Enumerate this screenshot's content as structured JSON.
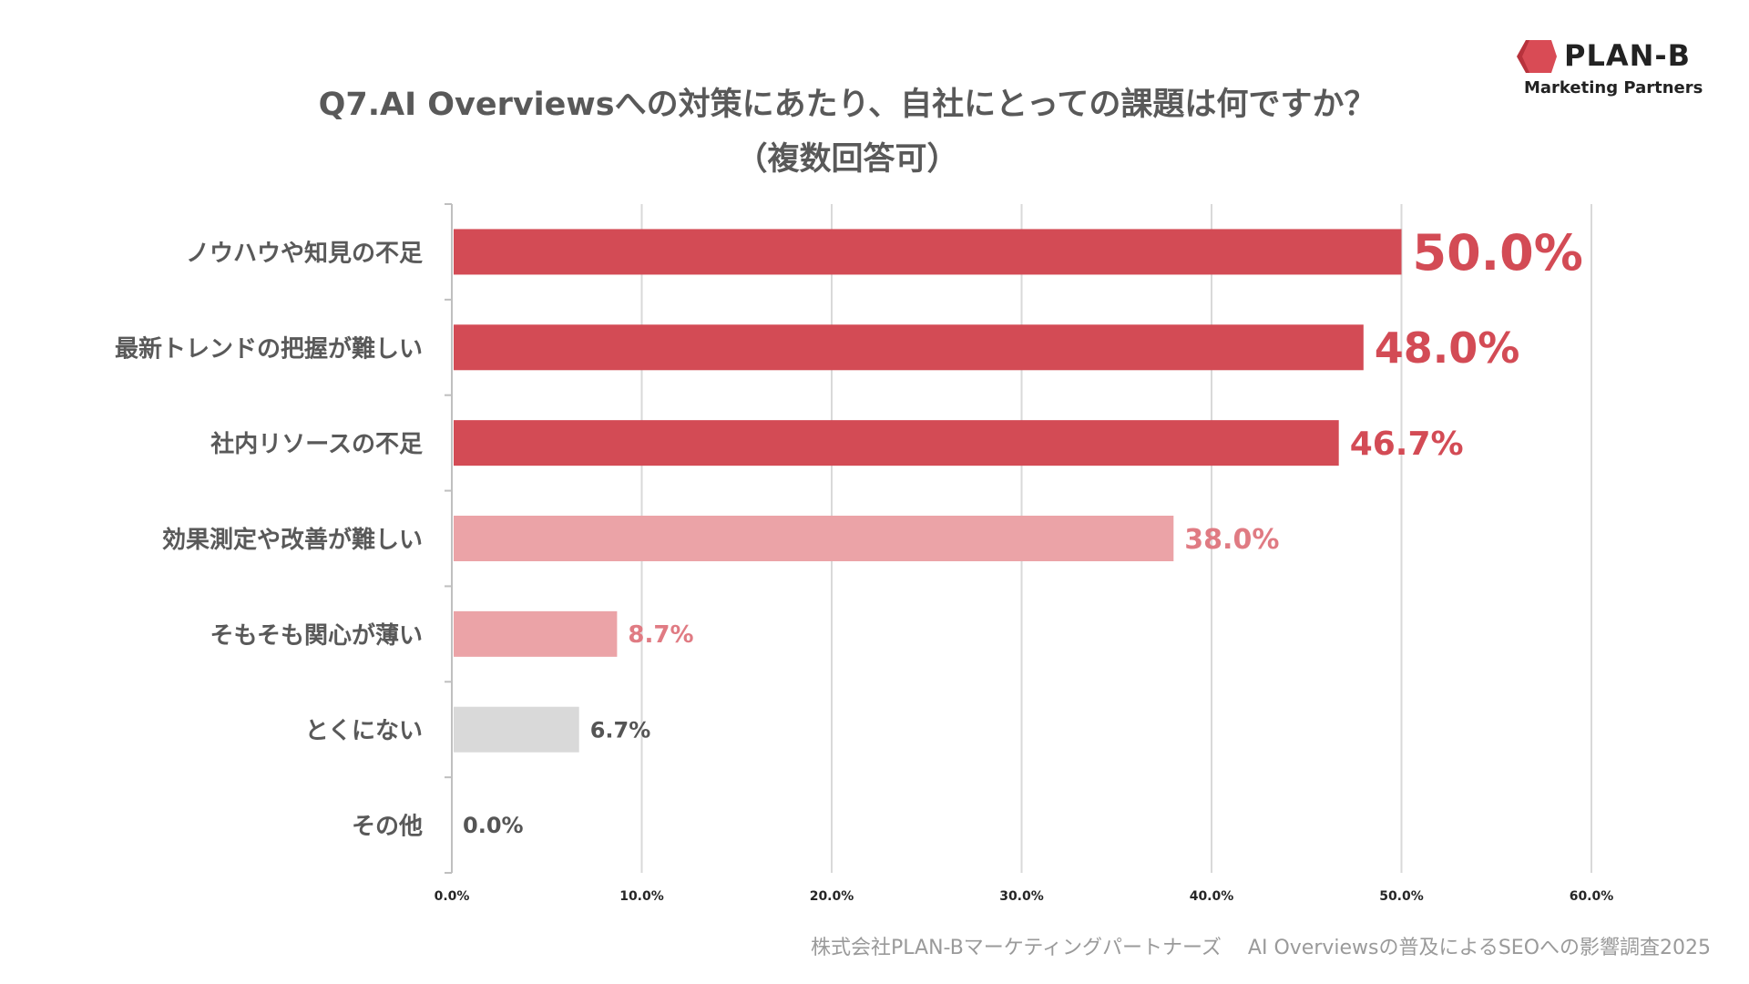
{
  "header": {
    "title_line1": "Q7.AI Overviewsへの対策にあたり、自社にとっての課題は何ですか？",
    "title_line2": "（複数回答可）"
  },
  "logo": {
    "name": "PLAN-B",
    "tagline": "Marketing Partners",
    "brand_color": "#d94b55"
  },
  "footer": {
    "source": "株式会社PLAN-Bマーケティングパートナーズ　 AI Overviewsの普及によるSEOへの影響調査2025"
  },
  "chart_data": {
    "type": "bar",
    "orientation": "horizontal",
    "title": "Q7.AI Overviewsへの対策にあたり、自社にとっての課題は何ですか？（複数回答可）",
    "xlabel": "",
    "ylabel": "",
    "xlim": [
      0,
      60
    ],
    "grid": true,
    "categories": [
      "ノウハウや知見の不足",
      "最新トレンドの把握が難しい",
      "社内リソースの不足",
      "効果測定や改善が難しい",
      "そもそも関心が薄い",
      "とくにない",
      "その他"
    ],
    "values": [
      50.0,
      48.0,
      46.7,
      38.0,
      8.7,
      6.7,
      0.0
    ],
    "value_labels": [
      "50.0%",
      "48.0%",
      "46.7%",
      "38.0%",
      "8.7%",
      "6.7%",
      "0.0%"
    ],
    "tick_values": [
      0,
      10,
      20,
      30,
      40,
      50,
      60
    ],
    "tick_labels": [
      "0.0%",
      "10.0%",
      "20.0%",
      "30.0%",
      "40.0%",
      "50.0%",
      "60.0%"
    ],
    "colors": {
      "strong": "#d34b55",
      "light": "#eba3a7",
      "neutral": "#d9d9d9",
      "grid": "#d9d9d9",
      "axis": "#bfbfbf",
      "category_text": "#595959",
      "tick_text": "#262626"
    },
    "bar_tiers": [
      "strong",
      "strong",
      "strong",
      "light",
      "light",
      "neutral",
      "neutral"
    ]
  }
}
